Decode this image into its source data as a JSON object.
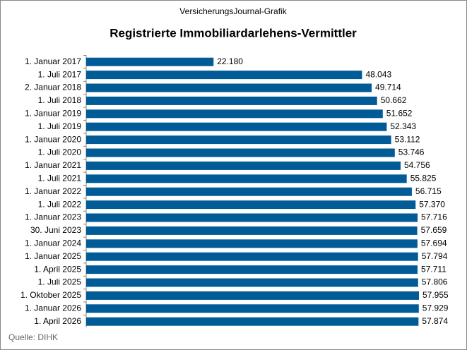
{
  "chart_data": {
    "type": "bar",
    "orientation": "horizontal",
    "header": "VersicherungsJournal-Grafik",
    "title": "Registrierte Immobiliardarlehens-Vermittler",
    "source": "Quelle: DIHK",
    "color": "#005b96",
    "categories": [
      "1. Januar 2017",
      "1. Juli 2017",
      "2. Januar 2018",
      "1. Juli 2018",
      "1. Januar 2019",
      "1. Juli 2019",
      "1. Januar 2020",
      "1. Juli 2020",
      "1. Januar 2021",
      "1. Juli 2021",
      "1. Januar 2022",
      "1. Juli 2022",
      "1. Januar 2023",
      "30. Juni 2023",
      "1. Januar 2024",
      "1. Januar 2025",
      "1. April 2025",
      "1. Juli 2025",
      "1. Oktober 2025",
      "1. Januar 2026",
      "1. April 2026"
    ],
    "values": [
      22180,
      48043,
      49714,
      50662,
      51652,
      52343,
      53112,
      53746,
      54756,
      55825,
      56715,
      57370,
      57716,
      57659,
      57694,
      57794,
      57711,
      57806,
      57955,
      57929,
      57874
    ],
    "value_labels": [
      "22.180",
      "48.043",
      "49.714",
      "50.662",
      "51.652",
      "52.343",
      "53.112",
      "53.746",
      "54.756",
      "55.825",
      "56.715",
      "57.370",
      "57.716",
      "57.659",
      "57.694",
      "57.794",
      "57.711",
      "57.806",
      "57.955",
      "57.929",
      "57.874"
    ]
  }
}
